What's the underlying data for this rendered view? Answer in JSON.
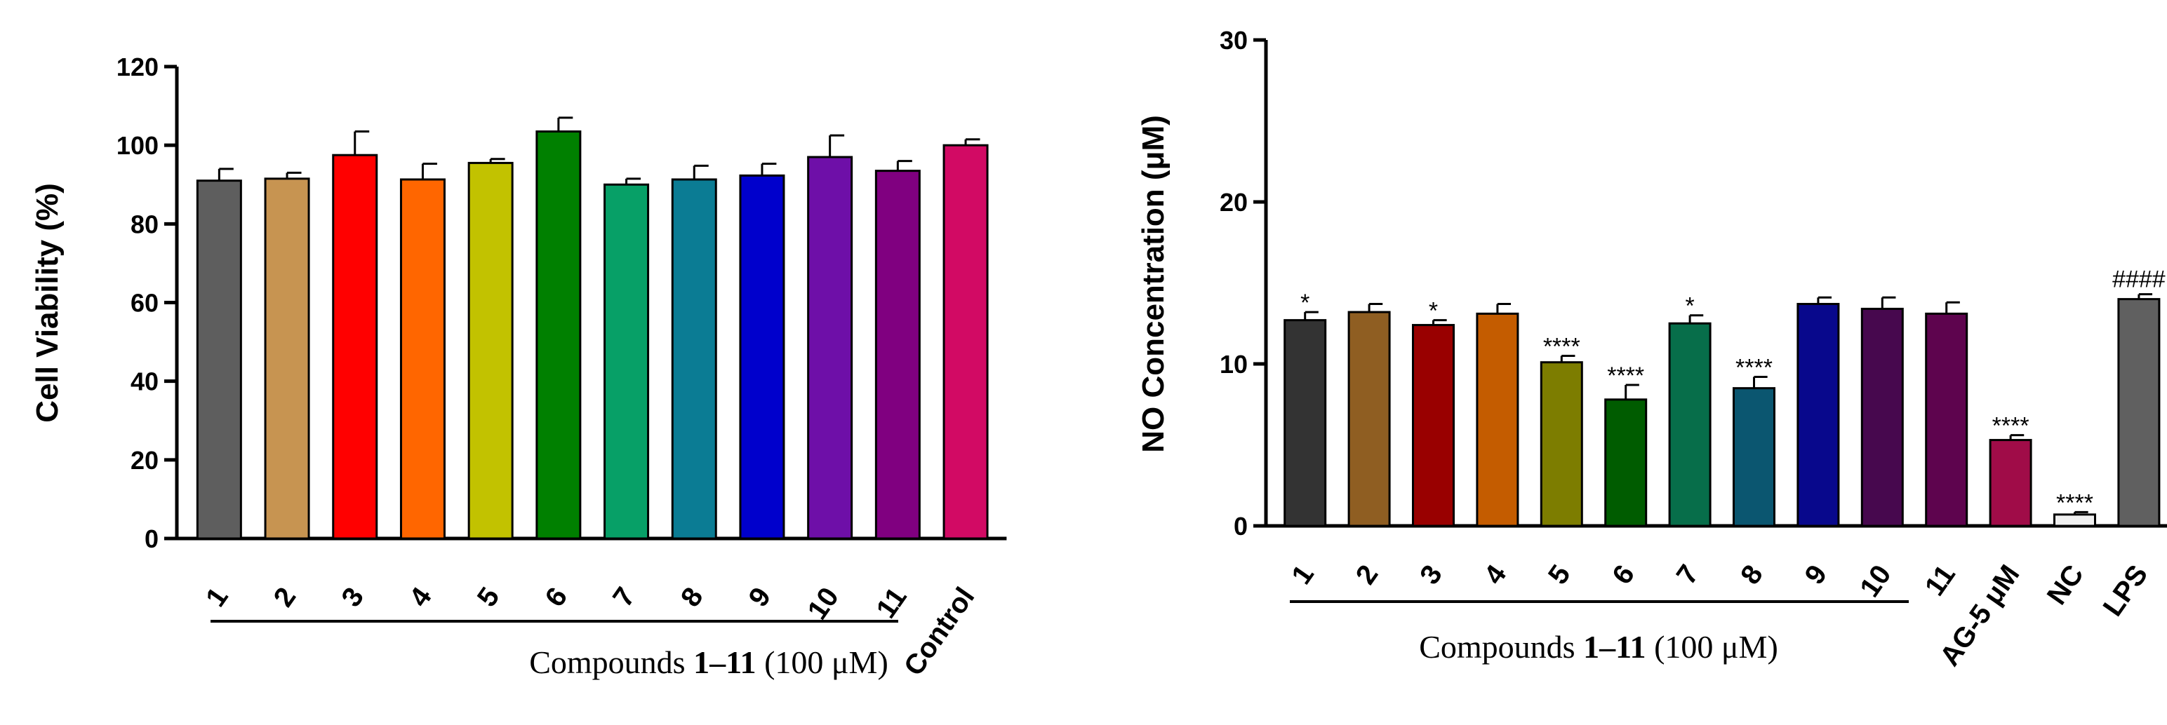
{
  "chart_data": [
    {
      "type": "bar",
      "ylabel": "Cell Viability (%)",
      "ylim": [
        0,
        120
      ],
      "yticks": [
        "0",
        "20",
        "40",
        "60",
        "80",
        "100",
        "120"
      ],
      "categories": [
        "1",
        "2",
        "3",
        "4",
        "5",
        "6",
        "7",
        "8",
        "9",
        "10",
        "11",
        "Control"
      ],
      "values": [
        91,
        91.5,
        97.5,
        91.3,
        95.5,
        103.5,
        90,
        91.3,
        92.3,
        97,
        93.5,
        100
      ],
      "errors": [
        3,
        1.5,
        6,
        4,
        1,
        3.5,
        1.5,
        3.5,
        3,
        5.5,
        2.5,
        1.5
      ],
      "colors": [
        "#5e5e5e",
        "#c79451",
        "#ff0000",
        "#ff6600",
        "#c2c200",
        "#008000",
        "#07a067",
        "#0b7c94",
        "#0000cc",
        "#6e0fa8",
        "#800080",
        "#d20a64"
      ],
      "group_label": {
        "prefix": "Compounds ",
        "bold": "1–11",
        "suffix": " (100 μM)"
      }
    },
    {
      "type": "bar",
      "ylabel": "NO Concentration (μM)",
      "ylim": [
        0,
        30
      ],
      "yticks": [
        "0",
        "10",
        "20",
        "30"
      ],
      "categories": [
        "1",
        "2",
        "3",
        "4",
        "5",
        "6",
        "7",
        "8",
        "9",
        "10",
        "11",
        "AG-5 μM",
        "NC",
        "LPS"
      ],
      "values": [
        12.7,
        13.2,
        12.4,
        13.1,
        10.1,
        7.8,
        12.5,
        8.5,
        13.7,
        13.4,
        13.1,
        5.3,
        0.7,
        14
      ],
      "errors": [
        0.5,
        0.5,
        0.3,
        0.6,
        0.4,
        0.9,
        0.5,
        0.7,
        0.4,
        0.7,
        0.7,
        0.3,
        0.15,
        0.3
      ],
      "annotations": [
        "*",
        "",
        "*",
        "",
        "****",
        "****",
        "*",
        "****",
        "",
        "",
        "",
        "****",
        "****",
        "####"
      ],
      "colors": [
        "#333333",
        "#8f5e22",
        "#990000",
        "#c45c00",
        "#7d7d00",
        "#005c00",
        "#076e4a",
        "#0b5670",
        "#08088c",
        "#47084e",
        "#5e044e",
        "#a00c48",
        "#f0f0f0",
        "#606060"
      ],
      "group_label": {
        "prefix": "Compounds ",
        "bold": "1–11",
        "suffix": " (100 μM)"
      }
    }
  ]
}
